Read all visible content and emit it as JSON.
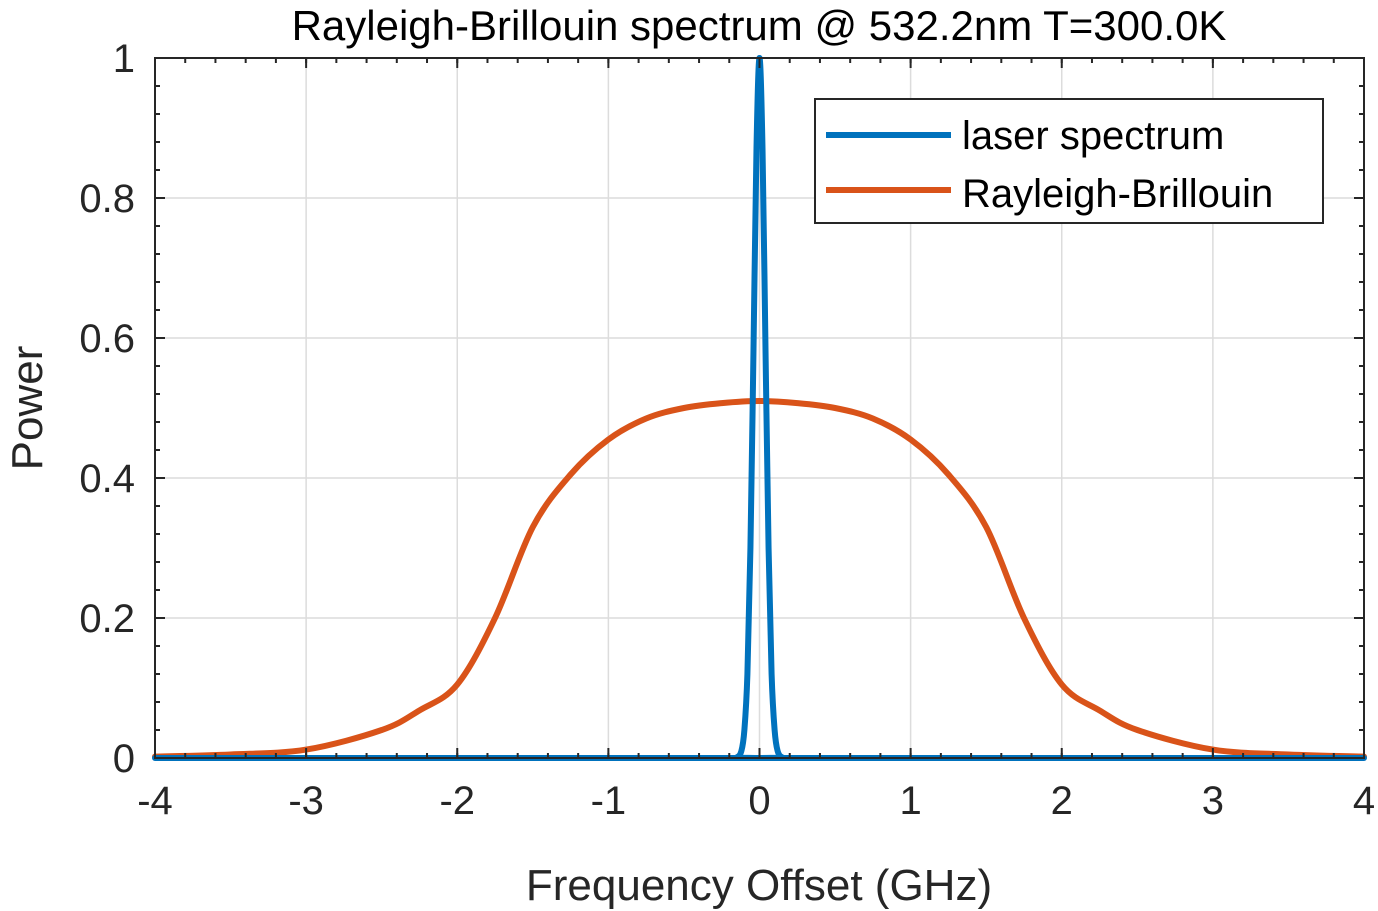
{
  "chart_data": {
    "type": "line",
    "title": "Rayleigh-Brillouin spectrum @ 532.2nm T=300.0K",
    "xlabel": "Frequency Offset (GHz)",
    "ylabel": "Power",
    "xlim": [
      -4,
      4
    ],
    "ylim": [
      0,
      1
    ],
    "xticks": [
      -4,
      -3,
      -2,
      -1,
      0,
      1,
      2,
      3,
      4
    ],
    "xtick_labels": [
      "-4",
      "-3",
      "-2",
      "-1",
      "0",
      "1",
      "2",
      "3",
      "4"
    ],
    "yticks": [
      0,
      0.2,
      0.4,
      0.6,
      0.8,
      1
    ],
    "ytick_labels": [
      "0",
      "0.2",
      "0.4",
      "0.6",
      "0.8",
      "1"
    ],
    "grid": true,
    "legend_position": "top-right",
    "series": [
      {
        "name": "laser spectrum",
        "color": "#0072BD",
        "x": [
          -4,
          -0.2,
          -0.15,
          -0.12,
          -0.1,
          -0.08,
          -0.06,
          -0.04,
          -0.02,
          0,
          0.02,
          0.04,
          0.06,
          0.08,
          0.1,
          0.12,
          0.15,
          0.2,
          4
        ],
        "y": [
          0,
          0,
          0.001,
          0.01,
          0.04,
          0.12,
          0.3,
          0.58,
          0.87,
          1.0,
          0.87,
          0.58,
          0.3,
          0.12,
          0.04,
          0.01,
          0.001,
          0,
          0
        ]
      },
      {
        "name": "Rayleigh-Brillouin",
        "color": "#D95319",
        "x": [
          -4,
          -3.5,
          -3,
          -2.5,
          -2.25,
          -2,
          -1.75,
          -1.5,
          -1.25,
          -1,
          -0.75,
          -0.5,
          -0.25,
          0,
          0.25,
          0.5,
          0.75,
          1,
          1.25,
          1.5,
          1.75,
          2,
          2.25,
          2.5,
          3,
          3.5,
          4
        ],
        "y": [
          0.002,
          0.005,
          0.012,
          0.04,
          0.068,
          0.105,
          0.2,
          0.33,
          0.405,
          0.455,
          0.485,
          0.5,
          0.507,
          0.51,
          0.507,
          0.5,
          0.485,
          0.455,
          0.405,
          0.33,
          0.2,
          0.105,
          0.068,
          0.04,
          0.012,
          0.005,
          0.002
        ]
      }
    ]
  }
}
